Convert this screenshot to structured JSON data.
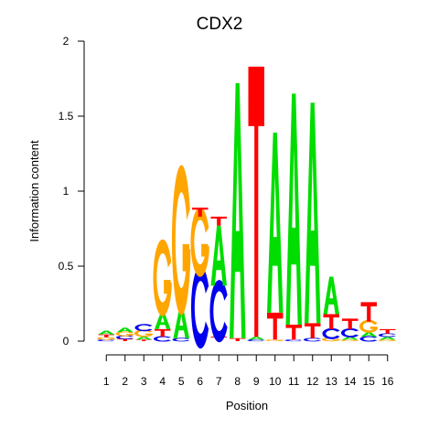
{
  "chart_data": {
    "type": "sequence-logo",
    "title": "CDX2",
    "xlabel": "Position",
    "ylabel": "Information content",
    "ylim": [
      0,
      2
    ],
    "yticks": [
      0,
      0.5,
      1,
      1.5,
      2
    ],
    "ytick_labels": [
      "0",
      "0.5",
      "1",
      "1.5",
      "2"
    ],
    "positions": [
      "1",
      "2",
      "3",
      "4",
      "5",
      "6",
      "7",
      "8",
      "9",
      "10",
      "11",
      "12",
      "13",
      "14",
      "15",
      "16"
    ],
    "colors": {
      "A": "#00dd00",
      "C": "#0000ee",
      "G": "#ffa500",
      "T": "#ff0000"
    },
    "stacks": [
      [
        {
          "l": "C",
          "h": 0.01
        },
        {
          "l": "G",
          "h": 0.015
        },
        {
          "l": "T",
          "h": 0.02
        },
        {
          "l": "A",
          "h": 0.025
        }
      ],
      [
        {
          "l": "T",
          "h": 0.015
        },
        {
          "l": "C",
          "h": 0.02
        },
        {
          "l": "G",
          "h": 0.025
        },
        {
          "l": "A",
          "h": 0.03
        }
      ],
      [
        {
          "l": "T",
          "h": 0.01
        },
        {
          "l": "A",
          "h": 0.02
        },
        {
          "l": "G",
          "h": 0.04
        },
        {
          "l": "C",
          "h": 0.04
        }
      ],
      [
        {
          "l": "C",
          "h": 0.03
        },
        {
          "l": "T",
          "h": 0.05
        },
        {
          "l": "A",
          "h": 0.11
        },
        {
          "l": "G",
          "h": 0.42
        }
      ],
      [
        {
          "l": "C",
          "h": 0.02
        },
        {
          "l": "A",
          "h": 0.2
        },
        {
          "l": "G",
          "h": 0.82
        }
      ],
      [
        {
          "l": "C",
          "h": 0.45
        },
        {
          "l": "G",
          "h": 0.38
        },
        {
          "l": "T",
          "h": 0.06
        }
      ],
      [
        {
          "l": "T",
          "h": 0.03
        },
        {
          "l": "C",
          "h": 0.34
        },
        {
          "l": "A",
          "h": 0.4
        },
        {
          "l": "T",
          "h": 0.06
        }
      ],
      [
        {
          "l": "T",
          "h": 0.02
        },
        {
          "l": "A",
          "h": 1.7
        }
      ],
      [
        {
          "l": "C",
          "h": 0.01
        },
        {
          "l": "A",
          "h": 0.02
        },
        {
          "l": "T",
          "h": 1.8
        }
      ],
      [
        {
          "l": "G",
          "h": 0.01
        },
        {
          "l": "T",
          "h": 0.18
        },
        {
          "l": "A",
          "h": 1.2
        }
      ],
      [
        {
          "l": "C",
          "h": 0.01
        },
        {
          "l": "T",
          "h": 0.1
        },
        {
          "l": "A",
          "h": 1.54
        }
      ],
      [
        {
          "l": "C",
          "h": 0.02
        },
        {
          "l": "T",
          "h": 0.1
        },
        {
          "l": "A",
          "h": 1.47
        }
      ],
      [
        {
          "l": "G",
          "h": 0.02
        },
        {
          "l": "C",
          "h": 0.06
        },
        {
          "l": "T",
          "h": 0.1
        },
        {
          "l": "A",
          "h": 0.25
        }
      ],
      [
        {
          "l": "G",
          "h": 0.01
        },
        {
          "l": "A",
          "h": 0.02
        },
        {
          "l": "C",
          "h": 0.05
        },
        {
          "l": "T",
          "h": 0.07
        }
      ],
      [
        {
          "l": "C",
          "h": 0.03
        },
        {
          "l": "A",
          "h": 0.03
        },
        {
          "l": "G",
          "h": 0.07
        },
        {
          "l": "T",
          "h": 0.13
        }
      ],
      [
        {
          "l": "G",
          "h": 0.01
        },
        {
          "l": "A",
          "h": 0.02
        },
        {
          "l": "C",
          "h": 0.02
        },
        {
          "l": "T",
          "h": 0.03
        }
      ]
    ]
  }
}
